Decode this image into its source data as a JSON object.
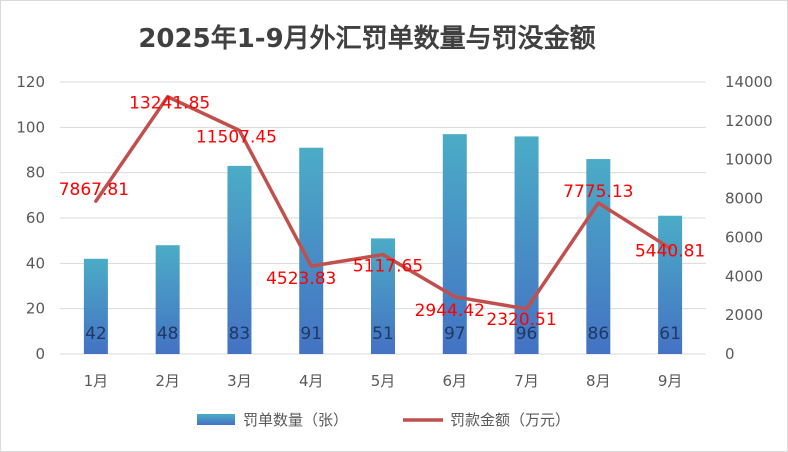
{
  "chart_data": {
    "type": "bar",
    "title": "2025年1-9月外汇罚单数量与罚没金额",
    "categories": [
      "1月",
      "2月",
      "3月",
      "4月",
      "5月",
      "6月",
      "7月",
      "8月",
      "9月"
    ],
    "series": [
      {
        "name": "罚单数量（张）",
        "type": "bar",
        "axis": "left",
        "values": [
          42,
          48,
          83,
          91,
          51,
          97,
          96,
          86,
          61
        ],
        "labels": [
          "42",
          "48",
          "83",
          "91",
          "51",
          "97",
          "96",
          "86",
          "61"
        ],
        "color_top": "#4bacc6",
        "color_bottom": "#4472c4"
      },
      {
        "name": "罚款金额（万元）",
        "type": "line",
        "axis": "right",
        "values": [
          7867.81,
          13241.85,
          11507.45,
          4523.83,
          5117.65,
          2944.42,
          2320.51,
          7775.13,
          5440.81
        ],
        "labels": [
          "7867.81",
          "13241.85",
          "11507.45",
          "4523.83",
          "5117.65",
          "2944.42",
          "2320.51",
          "7775.13",
          "5440.81"
        ],
        "color": "#c0504d"
      }
    ],
    "y_left": {
      "range": [
        0,
        120
      ],
      "ticks": [
        "0",
        "20",
        "40",
        "60",
        "80",
        "100",
        "120"
      ]
    },
    "y_right": {
      "range": [
        0,
        14000
      ],
      "ticks": [
        "0",
        "2000",
        "4000",
        "6000",
        "8000",
        "10000",
        "12000",
        "14000"
      ]
    },
    "grid": true,
    "legend_position": "bottom",
    "data_label_color": "#ff0000",
    "bar_label_color": "#1f3864"
  }
}
